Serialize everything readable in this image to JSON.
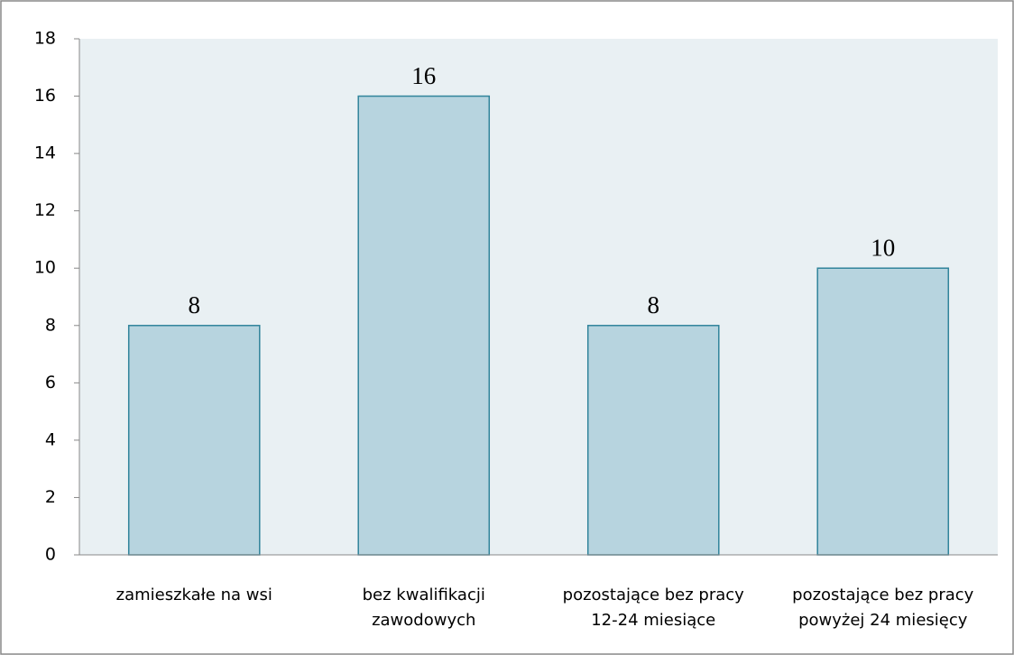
{
  "chart_data": {
    "type": "bar",
    "categories": [
      "zamieszkałe na wsi",
      "bez kwalifikacji zawodowych",
      "pozostające bez pracy 12-24 miesiące",
      "pozostające bez pracy powyżej 24 miesięcy"
    ],
    "values": [
      8,
      16,
      8,
      10
    ],
    "color": "#b7d4df",
    "edge_color": "#31849b",
    "plot_background": "#e9f0f3",
    "ylim": [
      0,
      18
    ],
    "yticks": [
      0,
      2,
      4,
      6,
      8,
      10,
      12,
      14,
      16,
      18
    ],
    "grid": false
  }
}
